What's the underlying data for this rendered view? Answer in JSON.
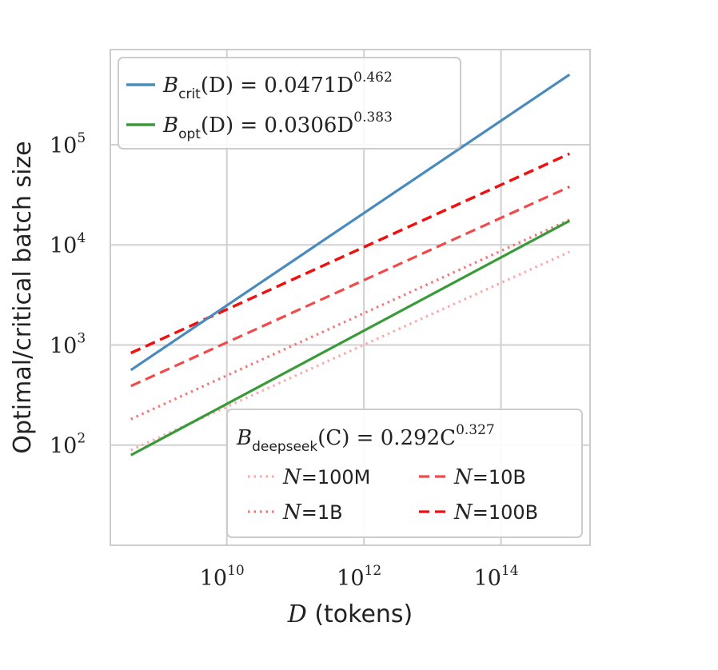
{
  "chart_data": {
    "type": "line",
    "title": "",
    "xlabel": "D (tokens)",
    "ylabel": "Optimal/critical batch size",
    "xscale": "log",
    "yscale": "log",
    "xlim_log10": [
      8.3,
      15.3
    ],
    "ylim_log10": [
      1.0,
      5.95
    ],
    "grid": true,
    "x_ticks": [
      {
        "base": "10",
        "exp": "10"
      },
      {
        "base": "10",
        "exp": "12"
      },
      {
        "base": "10",
        "exp": "14"
      }
    ],
    "y_ticks": [
      {
        "base": "10",
        "exp": "2"
      },
      {
        "base": "10",
        "exp": "3"
      },
      {
        "base": "10",
        "exp": "4"
      },
      {
        "base": "10",
        "exp": "5"
      }
    ],
    "series": [
      {
        "name": "B_crit(D) = 0.0471 D^0.462",
        "color": "#4a8bbd",
        "style": "solid",
        "x_log10": [
          8.6,
          15.0
        ],
        "y_log10": [
          2.75,
          5.7
        ]
      },
      {
        "name": "B_opt(D) = 0.0306 D^0.383",
        "color": "#3a9a3a",
        "style": "solid",
        "x_log10": [
          8.6,
          15.0
        ],
        "y_log10": [
          1.9,
          4.24
        ]
      },
      {
        "name": "N=100M",
        "color": "#f9aaaa",
        "style": "dotted",
        "x_log10": [
          8.6,
          15.0
        ],
        "y_log10": [
          1.95,
          3.93
        ]
      },
      {
        "name": "N=1B",
        "color": "#f07878",
        "style": "dotted",
        "x_log10": [
          8.6,
          15.0
        ],
        "y_log10": [
          2.26,
          4.25
        ]
      },
      {
        "name": "N=10B",
        "color": "#f24a4a",
        "style": "dashed",
        "x_log10": [
          8.6,
          15.0
        ],
        "y_log10": [
          2.59,
          4.58
        ]
      },
      {
        "name": "N=100B",
        "color": "#ee1111",
        "style": "dashed",
        "x_log10": [
          8.6,
          15.0
        ],
        "y_log10": [
          2.92,
          4.91
        ]
      }
    ],
    "legend_top": {
      "placement": "top-left",
      "entries": [
        {
          "symbol": "B",
          "sub": "crit",
          "arg": "(D)",
          "eq": " = 0.0471D",
          "sup": "0.462",
          "color": "#4a8bbd"
        },
        {
          "symbol": "B",
          "sub": "opt",
          "arg": "(D)",
          "eq": " = 0.0306D",
          "sup": "0.383",
          "color": "#3a9a3a"
        }
      ]
    },
    "legend_bottom": {
      "placement": "bottom-right",
      "title": {
        "symbol": "B",
        "sub": "deepseek",
        "arg": "(C)",
        "eq": " = 0.292C",
        "sup": "0.327"
      },
      "entries": [
        {
          "var": "N",
          "value": "=100M",
          "color": "#f9aaaa",
          "style": "dotted"
        },
        {
          "var": "N",
          "value": "=10B",
          "color": "#f24a4a",
          "style": "dashed"
        },
        {
          "var": "N",
          "value": "=1B",
          "color": "#f07878",
          "style": "dotted"
        },
        {
          "var": "N",
          "value": "=100B",
          "color": "#ee1111",
          "style": "dashed"
        }
      ]
    }
  }
}
